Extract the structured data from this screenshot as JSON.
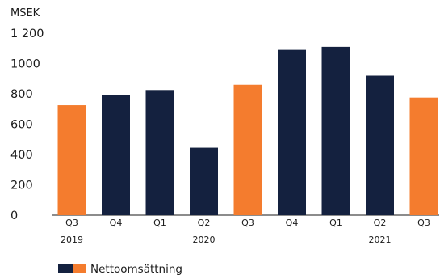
{
  "chart_data": {
    "type": "bar",
    "ylabel": "MSEK",
    "categories": [
      "Q3",
      "Q4",
      "Q1",
      "Q2",
      "Q3",
      "Q4",
      "Q1",
      "Q2",
      "Q3"
    ],
    "year_labels": [
      {
        "label": "2019",
        "category_index": 0
      },
      {
        "label": "2020",
        "category_index": 3
      },
      {
        "label": "2021",
        "category_index": 7
      }
    ],
    "series": [
      {
        "name": "Nettoomsättning",
        "values": [
          725,
          790,
          825,
          445,
          860,
          1090,
          1110,
          920,
          775
        ]
      }
    ],
    "highlight_indices": [
      0,
      4,
      8
    ],
    "yticks": [
      "0",
      "200",
      "400",
      "600",
      "800",
      "1000",
      "1 200"
    ],
    "ylim": [
      0,
      1200
    ],
    "grid": false,
    "legend": "bottom-left",
    "colors": {
      "primary": "#14213f",
      "highlight": "#f47c2e"
    }
  }
}
